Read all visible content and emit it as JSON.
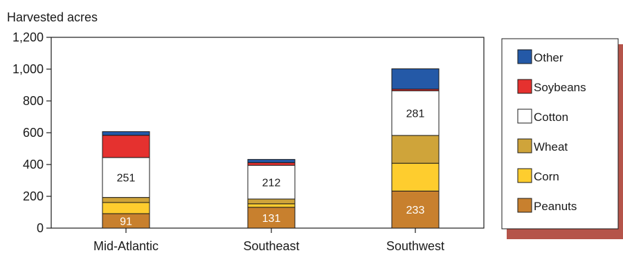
{
  "chart_data": {
    "type": "bar",
    "stacked": true,
    "ylabel": "Harvested acres",
    "ylim": [
      0,
      1200
    ],
    "yticks": [
      "0",
      "200",
      "400",
      "600",
      "800",
      "1,000",
      "1,200"
    ],
    "categories": [
      "Mid-Atlantic",
      "Southeast",
      "Southwest"
    ],
    "series": [
      {
        "name": "Peanuts",
        "color": "#c8802e",
        "values": [
          91,
          131,
          233
        ]
      },
      {
        "name": "Corn",
        "color": "#fecd2e",
        "values": [
          70,
          22,
          175
        ]
      },
      {
        "name": "Wheat",
        "color": "#cfa43a",
        "values": [
          32,
          30,
          175
        ]
      },
      {
        "name": "Cotton",
        "color": "#ffffff",
        "values": [
          251,
          212,
          281
        ]
      },
      {
        "name": "Soybeans",
        "color": "#e5312f",
        "values": [
          140,
          17,
          10
        ]
      },
      {
        "name": "Other",
        "color": "#2459a7",
        "values": [
          23,
          20,
          128
        ]
      }
    ],
    "data_labels": [
      {
        "category": "Mid-Atlantic",
        "series": "Peanuts",
        "text": "91"
      },
      {
        "category": "Mid-Atlantic",
        "series": "Cotton",
        "text": "251"
      },
      {
        "category": "Southeast",
        "series": "Peanuts",
        "text": "131"
      },
      {
        "category": "Southeast",
        "series": "Cotton",
        "text": "212"
      },
      {
        "category": "Southwest",
        "series": "Peanuts",
        "text": "233"
      },
      {
        "category": "Southwest",
        "series": "Cotton",
        "text": "281"
      }
    ],
    "legend": {
      "placement": "right",
      "order": [
        "Other",
        "Soybeans",
        "Cotton",
        "Wheat",
        "Corn",
        "Peanuts"
      ]
    },
    "grid": false
  }
}
